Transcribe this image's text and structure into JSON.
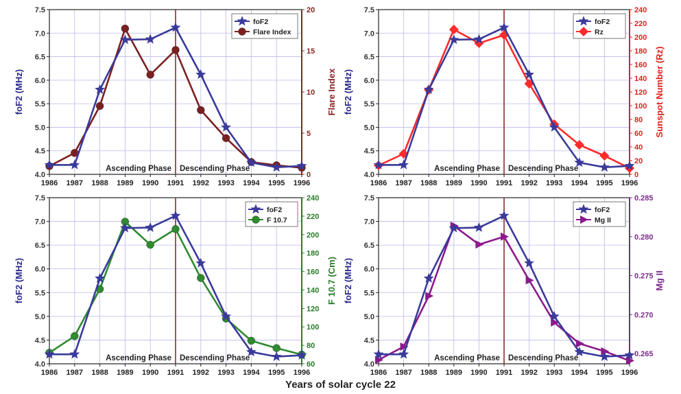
{
  "figure": {
    "xlabel": "Years of solar cycle 22",
    "years": [
      "1986",
      "1987",
      "1988",
      "1989",
      "1990",
      "1991",
      "1992",
      "1993",
      "1994",
      "1995",
      "1996"
    ],
    "phase_labels": [
      "Ascending Phase",
      "Descending Phase"
    ],
    "divider_year": 1991
  },
  "chart_data": [
    {
      "type": "line",
      "x": [
        1986,
        1987,
        1988,
        1989,
        1990,
        1991,
        1992,
        1993,
        1994,
        1995,
        1996
      ],
      "left_axis": {
        "label": "foF2 (MHz)",
        "ticks": [
          "4.0",
          "4.5",
          "5.0",
          "5.5",
          "6.0",
          "6.5",
          "7.0",
          "7.5"
        ],
        "range": [
          4.0,
          7.5
        ],
        "color": "#2a2a8c"
      },
      "right_axis": {
        "label": "Flare Index",
        "ticks": [
          "0",
          "5",
          "10",
          "15",
          "20"
        ],
        "range": [
          0,
          20
        ],
        "color": "#8b2323"
      },
      "series": [
        {
          "name": "foF2",
          "axis": "left",
          "marker": "star",
          "color": "#3a3a9a",
          "values": [
            4.2,
            4.2,
            5.8,
            6.86,
            6.87,
            7.12,
            6.12,
            5.0,
            4.25,
            4.15,
            4.18
          ]
        },
        {
          "name": "Flare Index",
          "axis": "right",
          "marker": "circle",
          "color": "#7b2020",
          "values": [
            1.0,
            2.6,
            8.3,
            17.7,
            12.1,
            15.1,
            7.8,
            4.4,
            1.5,
            1.1,
            0.8
          ]
        }
      ],
      "legend": "top-right"
    },
    {
      "type": "line",
      "x": [
        1986,
        1987,
        1988,
        1989,
        1990,
        1991,
        1992,
        1993,
        1994,
        1995,
        1996
      ],
      "left_axis": {
        "label": "foF2 (MHz)",
        "ticks": [
          "4.0",
          "4.5",
          "5.0",
          "5.5",
          "6.0",
          "6.5",
          "7.0",
          "7.5"
        ],
        "range": [
          4.0,
          7.5
        ],
        "color": "#2a2a8c"
      },
      "right_axis": {
        "label": "Sunspot Number (Rz)",
        "ticks": [
          "0",
          "20",
          "40",
          "60",
          "80",
          "100",
          "120",
          "140",
          "160",
          "180",
          "200",
          "220",
          "240"
        ],
        "range": [
          0,
          240
        ],
        "color": "#e02020"
      },
      "series": [
        {
          "name": "foF2",
          "axis": "left",
          "marker": "star",
          "color": "#3a3a9a",
          "values": [
            4.2,
            4.2,
            5.8,
            6.86,
            6.87,
            7.12,
            6.12,
            5.0,
            4.25,
            4.15,
            4.18
          ]
        },
        {
          "name": "Rz",
          "axis": "right",
          "marker": "diamond",
          "color": "#ff2b2b",
          "values": [
            13,
            30,
            123,
            211,
            191,
            203,
            132,
            73,
            43,
            27,
            9
          ]
        }
      ],
      "legend": "top-right"
    },
    {
      "type": "line",
      "x": [
        1986,
        1987,
        1988,
        1989,
        1990,
        1991,
        1992,
        1993,
        1994,
        1995,
        1996
      ],
      "left_axis": {
        "label": "foF2 (MHz)",
        "ticks": [
          "4.0",
          "4.5",
          "5.0",
          "5.5",
          "6.0",
          "6.5",
          "7.0",
          "7.5"
        ],
        "range": [
          4.0,
          7.5
        ],
        "color": "#2a2a8c"
      },
      "right_axis": {
        "label": "F 10.7 (Cm)",
        "ticks": [
          "60",
          "80",
          "100",
          "120",
          "140",
          "160",
          "180",
          "200",
          "220",
          "240"
        ],
        "range": [
          60,
          240
        ],
        "color": "#2a7a2a"
      },
      "series": [
        {
          "name": "foF2",
          "axis": "left",
          "marker": "star",
          "color": "#3a3a9a",
          "values": [
            4.2,
            4.2,
            5.8,
            6.86,
            6.87,
            7.12,
            6.12,
            5.0,
            4.25,
            4.15,
            4.18
          ]
        },
        {
          "name": "F 10.7",
          "axis": "right",
          "marker": "circle",
          "color": "#2e8b2e",
          "values": [
            72,
            90,
            141,
            214,
            189,
            206,
            153,
            109,
            85,
            77,
            70
          ]
        }
      ],
      "legend": "top-right"
    },
    {
      "type": "line",
      "x": [
        1986,
        1987,
        1988,
        1989,
        1990,
        1991,
        1992,
        1993,
        1994,
        1995,
        1996
      ],
      "left_axis": {
        "label": "foF2 (MHz)",
        "ticks": [
          "4.0",
          "4.5",
          "5.0",
          "5.5",
          "6.0",
          "6.5",
          "7.0",
          "7.5"
        ],
        "range": [
          4.0,
          7.5
        ],
        "color": "#2a2a8c"
      },
      "right_axis": {
        "label": "Mg II",
        "ticks": [
          "0.265",
          "0.270",
          "0.275",
          "0.280",
          "0.285"
        ],
        "range": [
          0.2637,
          0.285
        ],
        "color": "#7b2a8b"
      },
      "series": [
        {
          "name": "foF2",
          "axis": "left",
          "marker": "star",
          "color": "#3a3a9a",
          "values": [
            4.2,
            4.2,
            5.8,
            6.86,
            6.87,
            7.12,
            6.12,
            5.0,
            4.25,
            4.15,
            4.18
          ]
        },
        {
          "name": "Mg II",
          "axis": "right",
          "marker": "triangle-right",
          "color": "#8b1a8b",
          "values": [
            0.2642,
            0.2659,
            0.2724,
            0.2814,
            0.279,
            0.28,
            0.2744,
            0.269,
            0.2663,
            0.2653,
            0.2641
          ]
        }
      ],
      "legend": "top-right"
    }
  ]
}
